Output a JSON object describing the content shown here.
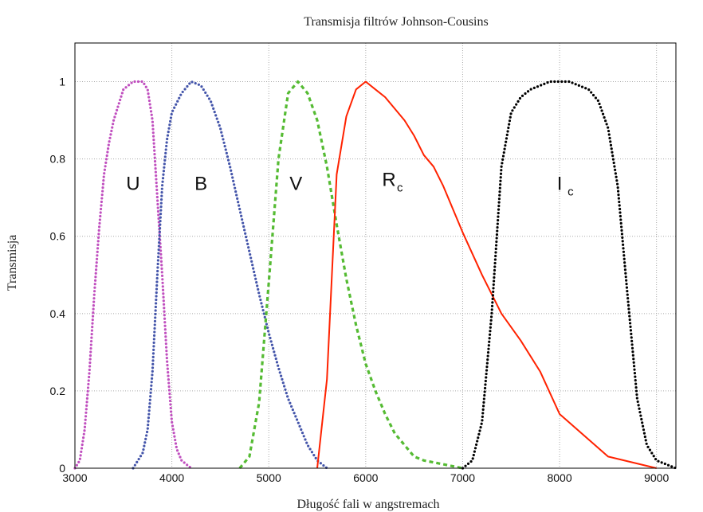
{
  "chart_data": {
    "type": "line",
    "title": "Transmisja filtrów Johnson-Cousins",
    "xlabel": "Długość fali w angstremach",
    "ylabel": "Transmisja",
    "xlim": [
      3000,
      9200
    ],
    "ylim": [
      0,
      1.1
    ],
    "xticks": [
      3000,
      4000,
      5000,
      6000,
      7000,
      8000,
      9000
    ],
    "yticks": [
      0,
      0.2,
      0.4,
      0.6,
      0.8,
      1
    ],
    "ytick_labels": [
      "0",
      "0.2",
      "0.4",
      "0.6",
      "0.8",
      "1"
    ],
    "grid": true,
    "series": [
      {
        "name": "U",
        "sub": "",
        "color": "#c04fbf",
        "style": "dotted",
        "label_pos": [
          3600,
          0.72
        ],
        "points": [
          [
            3000,
            0
          ],
          [
            3050,
            0.02
          ],
          [
            3100,
            0.1
          ],
          [
            3150,
            0.25
          ],
          [
            3200,
            0.45
          ],
          [
            3250,
            0.62
          ],
          [
            3300,
            0.76
          ],
          [
            3350,
            0.84
          ],
          [
            3400,
            0.9
          ],
          [
            3450,
            0.94
          ],
          [
            3500,
            0.98
          ],
          [
            3550,
            0.99
          ],
          [
            3600,
            1.0
          ],
          [
            3650,
            1.0
          ],
          [
            3700,
            1.0
          ],
          [
            3750,
            0.98
          ],
          [
            3800,
            0.9
          ],
          [
            3850,
            0.7
          ],
          [
            3900,
            0.5
          ],
          [
            3950,
            0.28
          ],
          [
            4000,
            0.12
          ],
          [
            4050,
            0.05
          ],
          [
            4100,
            0.02
          ],
          [
            4200,
            0
          ]
        ]
      },
      {
        "name": "B",
        "sub": "",
        "color": "#4455aa",
        "style": "dotted",
        "label_pos": [
          4300,
          0.72
        ],
        "points": [
          [
            3600,
            0
          ],
          [
            3700,
            0.04
          ],
          [
            3750,
            0.1
          ],
          [
            3800,
            0.25
          ],
          [
            3850,
            0.5
          ],
          [
            3900,
            0.73
          ],
          [
            3950,
            0.85
          ],
          [
            4000,
            0.92
          ],
          [
            4100,
            0.97
          ],
          [
            4200,
            1.0
          ],
          [
            4300,
            0.99
          ],
          [
            4400,
            0.95
          ],
          [
            4500,
            0.88
          ],
          [
            4600,
            0.78
          ],
          [
            4700,
            0.67
          ],
          [
            4800,
            0.56
          ],
          [
            4900,
            0.45
          ],
          [
            5000,
            0.35
          ],
          [
            5100,
            0.26
          ],
          [
            5200,
            0.18
          ],
          [
            5300,
            0.12
          ],
          [
            5400,
            0.06
          ],
          [
            5500,
            0.02
          ],
          [
            5600,
            0
          ]
        ]
      },
      {
        "name": "V",
        "sub": "",
        "color": "#55bb33",
        "style": "dashed",
        "label_pos": [
          5280,
          0.72
        ],
        "points": [
          [
            4700,
            0
          ],
          [
            4800,
            0.03
          ],
          [
            4900,
            0.17
          ],
          [
            5000,
            0.48
          ],
          [
            5100,
            0.8
          ],
          [
            5200,
            0.97
          ],
          [
            5300,
            1.0
          ],
          [
            5400,
            0.97
          ],
          [
            5500,
            0.9
          ],
          [
            5600,
            0.78
          ],
          [
            5700,
            0.63
          ],
          [
            5800,
            0.49
          ],
          [
            5900,
            0.37
          ],
          [
            6000,
            0.27
          ],
          [
            6100,
            0.2
          ],
          [
            6200,
            0.14
          ],
          [
            6300,
            0.09
          ],
          [
            6400,
            0.06
          ],
          [
            6500,
            0.03
          ],
          [
            6600,
            0.02
          ],
          [
            6800,
            0.01
          ],
          [
            7000,
            0
          ]
        ]
      },
      {
        "name": "R",
        "sub": "c",
        "color": "#ff2200",
        "style": "solid",
        "label_pos": [
          6240,
          0.73
        ],
        "points": [
          [
            5500,
            0
          ],
          [
            5600,
            0.23
          ],
          [
            5700,
            0.76
          ],
          [
            5800,
            0.91
          ],
          [
            5900,
            0.98
          ],
          [
            6000,
            1.0
          ],
          [
            6100,
            0.98
          ],
          [
            6200,
            0.96
          ],
          [
            6300,
            0.93
          ],
          [
            6400,
            0.9
          ],
          [
            6500,
            0.86
          ],
          [
            6600,
            0.81
          ],
          [
            6700,
            0.78
          ],
          [
            6800,
            0.73
          ],
          [
            6900,
            0.67
          ],
          [
            7000,
            0.61
          ],
          [
            7200,
            0.5
          ],
          [
            7400,
            0.4
          ],
          [
            7600,
            0.33
          ],
          [
            7800,
            0.25
          ],
          [
            8000,
            0.14
          ],
          [
            8500,
            0.03
          ],
          [
            9000,
            0
          ]
        ]
      },
      {
        "name": "I",
        "sub": "c",
        "color": "#000000",
        "style": "dotted",
        "label_pos": [
          8000,
          0.72
        ],
        "points": [
          [
            7000,
            0
          ],
          [
            7100,
            0.02
          ],
          [
            7200,
            0.12
          ],
          [
            7300,
            0.4
          ],
          [
            7400,
            0.78
          ],
          [
            7500,
            0.92
          ],
          [
            7600,
            0.96
          ],
          [
            7700,
            0.98
          ],
          [
            7800,
            0.99
          ],
          [
            7900,
            1.0
          ],
          [
            8000,
            1.0
          ],
          [
            8100,
            1.0
          ],
          [
            8200,
            0.99
          ],
          [
            8300,
            0.98
          ],
          [
            8400,
            0.95
          ],
          [
            8500,
            0.88
          ],
          [
            8600,
            0.73
          ],
          [
            8700,
            0.45
          ],
          [
            8800,
            0.18
          ],
          [
            8900,
            0.06
          ],
          [
            9000,
            0.02
          ],
          [
            9100,
            0.01
          ],
          [
            9200,
            0
          ]
        ]
      }
    ]
  }
}
